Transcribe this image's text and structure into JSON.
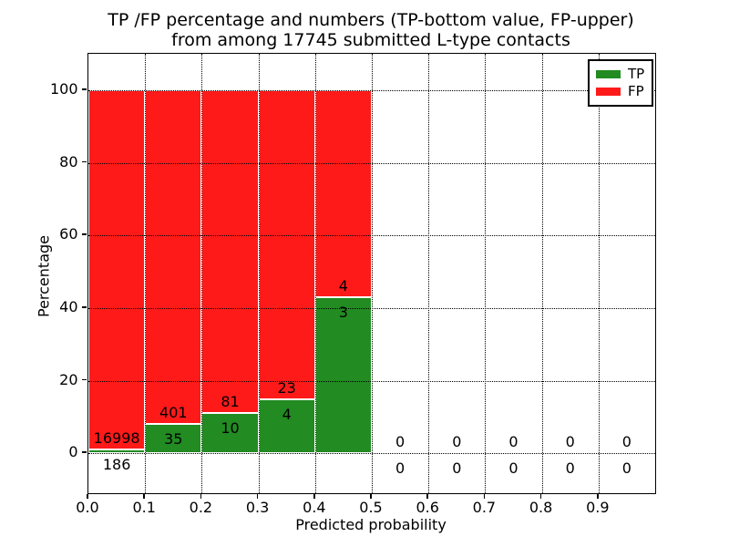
{
  "figure": {
    "title_line1": "TP /FP percentage and numbers (TP-bottom value, FP-upper)",
    "title_line2": "from among 17745 submitted L-type contacts",
    "xlabel": "Predicted probability",
    "ylabel": "Percentage"
  },
  "legend": {
    "entries": [
      {
        "label": "TP",
        "color": "#228B22"
      },
      {
        "label": "FP",
        "color": "#FF1A1A"
      }
    ]
  },
  "chart_data": {
    "type": "bar",
    "subtype": "stacked-100-percent",
    "title": "TP /FP percentage and numbers (TP-bottom value, FP-upper) from among 17745 submitted L-type contacts",
    "xlabel": "Predicted probability",
    "ylabel": "Percentage",
    "total_submitted": 17745,
    "bins": [
      {
        "range": [
          0.0,
          0.1
        ],
        "tp": 186,
        "fp": 16998
      },
      {
        "range": [
          0.1,
          0.2
        ],
        "tp": 35,
        "fp": 401
      },
      {
        "range": [
          0.2,
          0.3
        ],
        "tp": 10,
        "fp": 81
      },
      {
        "range": [
          0.3,
          0.4
        ],
        "tp": 4,
        "fp": 23
      },
      {
        "range": [
          0.4,
          0.5
        ],
        "tp": 3,
        "fp": 4
      },
      {
        "range": [
          0.5,
          0.6
        ],
        "tp": 0,
        "fp": 0
      },
      {
        "range": [
          0.6,
          0.7
        ],
        "tp": 0,
        "fp": 0
      },
      {
        "range": [
          0.7,
          0.8
        ],
        "tp": 0,
        "fp": 0
      },
      {
        "range": [
          0.8,
          0.9
        ],
        "tp": 0,
        "fp": 0
      },
      {
        "range": [
          0.9,
          1.0
        ],
        "tp": 0,
        "fp": 0
      }
    ],
    "x_ticks": [
      "0.0",
      "0.1",
      "0.2",
      "0.3",
      "0.4",
      "0.5",
      "0.6",
      "0.7",
      "0.8",
      "0.9"
    ],
    "y_ticks": [
      "0",
      "20",
      "40",
      "60",
      "80",
      "100"
    ],
    "xlim": [
      0.0,
      1.0
    ],
    "ylim": [
      -11,
      110
    ],
    "grid": true,
    "legend_position": "upper right",
    "colors": {
      "tp": "#228B22",
      "fp": "#FF1A1A",
      "bar_edge": "#FFFFFF",
      "grid": "#000000",
      "text": "#000000"
    }
  }
}
